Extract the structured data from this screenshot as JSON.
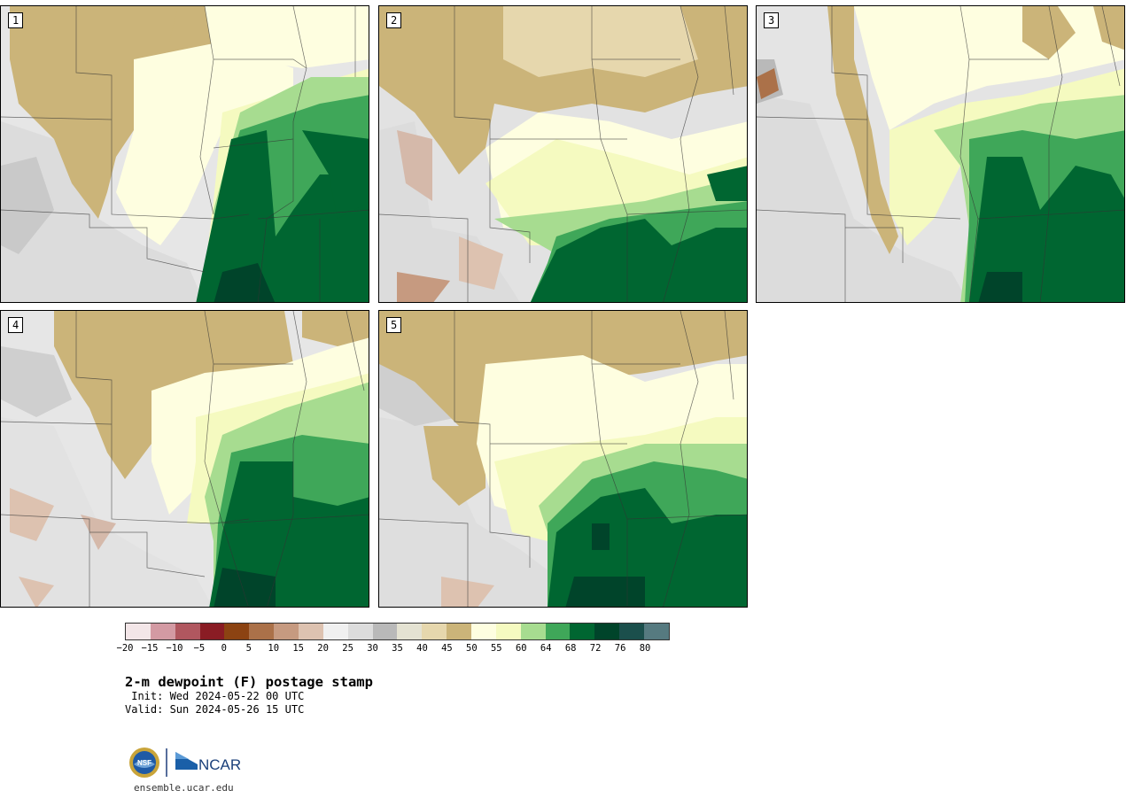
{
  "product": {
    "title": "2-m dewpoint (F) postage stamp",
    "init": " Init: Wed 2024-05-22 00 UTC",
    "valid": "Valid: Sun 2024-05-26 15 UTC"
  },
  "panels": [
    {
      "label": "1"
    },
    {
      "label": "2"
    },
    {
      "label": "3"
    },
    {
      "label": "4"
    },
    {
      "label": "5"
    }
  ],
  "colorbar": {
    "colors": [
      "#f3e6e8",
      "#d39aa3",
      "#b0575f",
      "#8a1c24",
      "#8c4312",
      "#ab7149",
      "#c69a80",
      "#ddc2b0",
      "#f0f0f0",
      "#dcdcdc",
      "#b9b9b9",
      "#e4e2d2",
      "#e6d7ad",
      "#cbb479",
      "#fefee0",
      "#f5fac0",
      "#a7dc90",
      "#3fa759",
      "#006631",
      "#00442a",
      "#1b4f4c",
      "#567a80"
    ],
    "ticks": [
      "−20",
      "−15",
      "−10",
      "−5",
      "0",
      "5",
      "10",
      "15",
      "20",
      "25",
      "30",
      "35",
      "40",
      "45",
      "50",
      "55",
      "60",
      "64",
      "68",
      "72",
      "76",
      "80"
    ]
  },
  "logos": {
    "nsf_text": "NSF",
    "ncar_text": "NCAR"
  },
  "footer": {
    "site": "ensemble.ucar.edu"
  }
}
